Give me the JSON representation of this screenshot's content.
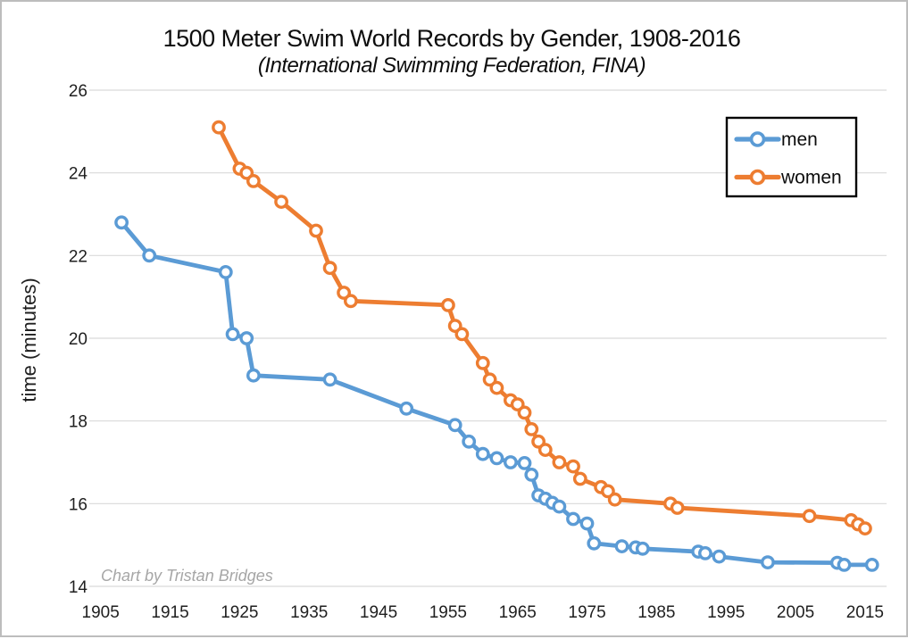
{
  "page": {
    "background": "#ffffff",
    "frame_color": "#bdbdbd"
  },
  "chart_data": {
    "type": "line",
    "title": "1500 Meter Swim World Records by Gender, 1908-2016",
    "subtitle": "(International Swimming Federation, FINA)",
    "xlabel": "",
    "ylabel": "time (minutes)",
    "attribution": "Chart by Tristan Bridges",
    "grid": "horizontal",
    "x_ticks": [
      1905,
      1915,
      1925,
      1935,
      1945,
      1955,
      1965,
      1975,
      1985,
      1995,
      2005,
      2015
    ],
    "y_ticks": [
      14,
      16,
      18,
      20,
      22,
      24,
      26
    ],
    "xlim": [
      1903.4,
      2018.1
    ],
    "ylim": [
      14,
      26
    ],
    "legend": {
      "position": "top-right",
      "border_color": "#000000",
      "background": "#ffffff"
    },
    "gridline_color": "#d9d9d9",
    "marker_style": "open-circle",
    "series": [
      {
        "name": "men",
        "color": "#5b9bd5",
        "points": [
          {
            "year": 1908,
            "minutes": 22.8
          },
          {
            "year": 1912,
            "minutes": 22.0
          },
          {
            "year": 1923,
            "minutes": 21.6
          },
          {
            "year": 1924,
            "minutes": 20.1
          },
          {
            "year": 1926,
            "minutes": 20.0
          },
          {
            "year": 1927,
            "minutes": 19.1
          },
          {
            "year": 1938,
            "minutes": 19.0
          },
          {
            "year": 1949,
            "minutes": 18.3
          },
          {
            "year": 1956,
            "minutes": 17.9
          },
          {
            "year": 1958,
            "minutes": 17.5
          },
          {
            "year": 1960,
            "minutes": 17.2
          },
          {
            "year": 1962,
            "minutes": 17.1
          },
          {
            "year": 1964,
            "minutes": 17.0
          },
          {
            "year": 1966,
            "minutes": 16.98
          },
          {
            "year": 1967,
            "minutes": 16.7
          },
          {
            "year": 1968,
            "minutes": 16.2
          },
          {
            "year": 1969,
            "minutes": 16.12
          },
          {
            "year": 1970,
            "minutes": 16.02
          },
          {
            "year": 1971,
            "minutes": 15.93
          },
          {
            "year": 1973,
            "minutes": 15.63
          },
          {
            "year": 1975,
            "minutes": 15.52
          },
          {
            "year": 1976,
            "minutes": 15.04
          },
          {
            "year": 1980,
            "minutes": 14.97
          },
          {
            "year": 1982,
            "minutes": 14.94
          },
          {
            "year": 1983,
            "minutes": 14.91
          },
          {
            "year": 1991,
            "minutes": 14.84
          },
          {
            "year": 1992,
            "minutes": 14.8
          },
          {
            "year": 1994,
            "minutes": 14.72
          },
          {
            "year": 2001,
            "minutes": 14.58
          },
          {
            "year": 2011,
            "minutes": 14.57
          },
          {
            "year": 2012,
            "minutes": 14.52
          },
          {
            "year": 2016,
            "minutes": 14.52
          }
        ]
      },
      {
        "name": "women",
        "color": "#ed7d31",
        "points": [
          {
            "year": 1922,
            "minutes": 25.1
          },
          {
            "year": 1925,
            "minutes": 24.1
          },
          {
            "year": 1926,
            "minutes": 24.0
          },
          {
            "year": 1927,
            "minutes": 23.8
          },
          {
            "year": 1931,
            "minutes": 23.3
          },
          {
            "year": 1936,
            "minutes": 22.6
          },
          {
            "year": 1938,
            "minutes": 21.7
          },
          {
            "year": 1940,
            "minutes": 21.1
          },
          {
            "year": 1941,
            "minutes": 20.9
          },
          {
            "year": 1955,
            "minutes": 20.8
          },
          {
            "year": 1956,
            "minutes": 20.3
          },
          {
            "year": 1957,
            "minutes": 20.1
          },
          {
            "year": 1960,
            "minutes": 19.4
          },
          {
            "year": 1961,
            "minutes": 19.0
          },
          {
            "year": 1962,
            "minutes": 18.8
          },
          {
            "year": 1964,
            "minutes": 18.5
          },
          {
            "year": 1965,
            "minutes": 18.4
          },
          {
            "year": 1966,
            "minutes": 18.2
          },
          {
            "year": 1967,
            "minutes": 17.8
          },
          {
            "year": 1968,
            "minutes": 17.5
          },
          {
            "year": 1969,
            "minutes": 17.3
          },
          {
            "year": 1971,
            "minutes": 17.0
          },
          {
            "year": 1973,
            "minutes": 16.9
          },
          {
            "year": 1974,
            "minutes": 16.6
          },
          {
            "year": 1977,
            "minutes": 16.4
          },
          {
            "year": 1978,
            "minutes": 16.3
          },
          {
            "year": 1979,
            "minutes": 16.1
          },
          {
            "year": 1987,
            "minutes": 16.0
          },
          {
            "year": 1988,
            "minutes": 15.9
          },
          {
            "year": 2007,
            "minutes": 15.7
          },
          {
            "year": 2013,
            "minutes": 15.6
          },
          {
            "year": 2014,
            "minutes": 15.5
          },
          {
            "year": 2015,
            "minutes": 15.4
          }
        ]
      }
    ]
  }
}
